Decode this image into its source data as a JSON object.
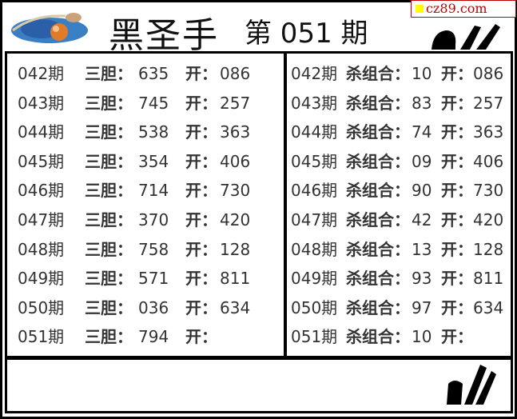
{
  "header": {
    "title": "黑圣手",
    "issue": "第 051 期",
    "brand": "cz89.com",
    "logo_icon": "planet-logo",
    "signature": "ol handwritten mark"
  },
  "left": {
    "label": "三胆：",
    "open_label": "开：",
    "rows": [
      {
        "period": "042期",
        "value": "635",
        "open": "086"
      },
      {
        "period": "043期",
        "value": "745",
        "open": "257"
      },
      {
        "period": "044期",
        "value": "538",
        "open": "363"
      },
      {
        "period": "045期",
        "value": "354",
        "open": "406"
      },
      {
        "period": "046期",
        "value": "714",
        "open": "730"
      },
      {
        "period": "047期",
        "value": "370",
        "open": "420"
      },
      {
        "period": "048期",
        "value": "758",
        "open": "128"
      },
      {
        "period": "049期",
        "value": "571",
        "open": "811"
      },
      {
        "period": "050期",
        "value": "036",
        "open": "634"
      },
      {
        "period": "051期",
        "value": "794",
        "open": ""
      }
    ]
  },
  "right": {
    "label": "杀组合：",
    "open_label": "开：",
    "rows": [
      {
        "period": "042期",
        "value": "10",
        "open": "086"
      },
      {
        "period": "043期",
        "value": "83",
        "open": "257"
      },
      {
        "period": "044期",
        "value": "74",
        "open": "363"
      },
      {
        "period": "045期",
        "value": "09",
        "open": "406"
      },
      {
        "period": "046期",
        "value": "90",
        "open": "730"
      },
      {
        "period": "047期",
        "value": "42",
        "open": "420"
      },
      {
        "period": "048期",
        "value": "13",
        "open": "128"
      },
      {
        "period": "049期",
        "value": "93",
        "open": "811"
      },
      {
        "period": "050期",
        "value": "97",
        "open": "634"
      },
      {
        "period": "051期",
        "value": "10",
        "open": ""
      }
    ]
  },
  "colors": {
    "brand": "#bb0000",
    "border": "#000000",
    "text": "#333333"
  }
}
